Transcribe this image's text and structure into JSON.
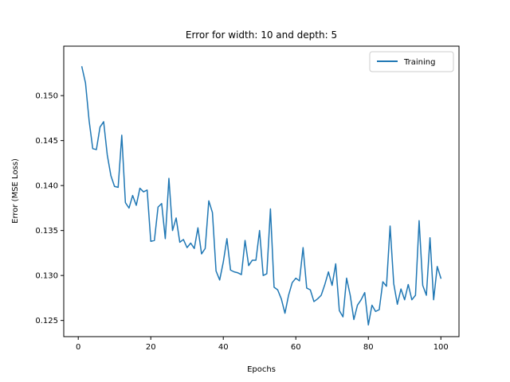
{
  "chart_data": {
    "type": "line",
    "title": "Error for width: 10 and depth: 5",
    "xlabel": "Epochs",
    "ylabel": "Error (MSE Loss)",
    "xlim": [
      -4,
      105
    ],
    "ylim": [
      0.1232,
      0.1555
    ],
    "xticks": [
      0,
      20,
      40,
      60,
      80,
      100
    ],
    "yticks": [
      0.125,
      0.13,
      0.135,
      0.14,
      0.145,
      0.15
    ],
    "ytick_labels": [
      "0.125",
      "0.130",
      "0.135",
      "0.140",
      "0.145",
      "0.150"
    ],
    "legend_position": "top-right",
    "grid": false,
    "series": [
      {
        "name": "Training",
        "color": "#1f77b4",
        "x": [
          1,
          2,
          3,
          4,
          5,
          6,
          7,
          8,
          9,
          10,
          11,
          12,
          13,
          14,
          15,
          16,
          17,
          18,
          19,
          20,
          21,
          22,
          23,
          24,
          25,
          26,
          27,
          28,
          29,
          30,
          31,
          32,
          33,
          34,
          35,
          36,
          37,
          38,
          39,
          40,
          41,
          42,
          43,
          44,
          45,
          46,
          47,
          48,
          49,
          50,
          51,
          52,
          53,
          54,
          55,
          56,
          57,
          58,
          59,
          60,
          61,
          62,
          63,
          64,
          65,
          66,
          67,
          68,
          69,
          70,
          71,
          72,
          73,
          74,
          75,
          76,
          77,
          78,
          79,
          80,
          81,
          82,
          83,
          84,
          85,
          86,
          87,
          88,
          89,
          90,
          91,
          92,
          93,
          94,
          95,
          96,
          97,
          98,
          99,
          100
        ],
        "values": [
          0.1532,
          0.1514,
          0.1472,
          0.1441,
          0.144,
          0.1465,
          0.1471,
          0.1434,
          0.1411,
          0.1399,
          0.1398,
          0.1456,
          0.1381,
          0.1375,
          0.1389,
          0.1378,
          0.1397,
          0.1393,
          0.1395,
          0.1338,
          0.1339,
          0.1376,
          0.138,
          0.1341,
          0.1408,
          0.135,
          0.1364,
          0.1337,
          0.134,
          0.1331,
          0.1336,
          0.133,
          0.1353,
          0.1324,
          0.133,
          0.1383,
          0.137,
          0.1305,
          0.1295,
          0.1315,
          0.1341,
          0.1306,
          0.1304,
          0.1303,
          0.1301,
          0.1339,
          0.1311,
          0.1317,
          0.1317,
          0.135,
          0.13,
          0.1302,
          0.1374,
          0.1287,
          0.1284,
          0.1274,
          0.1258,
          0.1278,
          0.1292,
          0.1297,
          0.1294,
          0.1331,
          0.1286,
          0.1284,
          0.1271,
          0.1274,
          0.1278,
          0.129,
          0.1304,
          0.1289,
          0.1313,
          0.1261,
          0.1254,
          0.1297,
          0.1278,
          0.1251,
          0.1267,
          0.1273,
          0.1281,
          0.1245,
          0.1267,
          0.126,
          0.1262,
          0.1293,
          0.1288,
          0.1355,
          0.1291,
          0.1268,
          0.1285,
          0.1273,
          0.129,
          0.1273,
          0.1278,
          0.1361,
          0.1289,
          0.1278,
          0.1342,
          0.1273,
          0.131,
          0.1297
        ]
      }
    ]
  }
}
